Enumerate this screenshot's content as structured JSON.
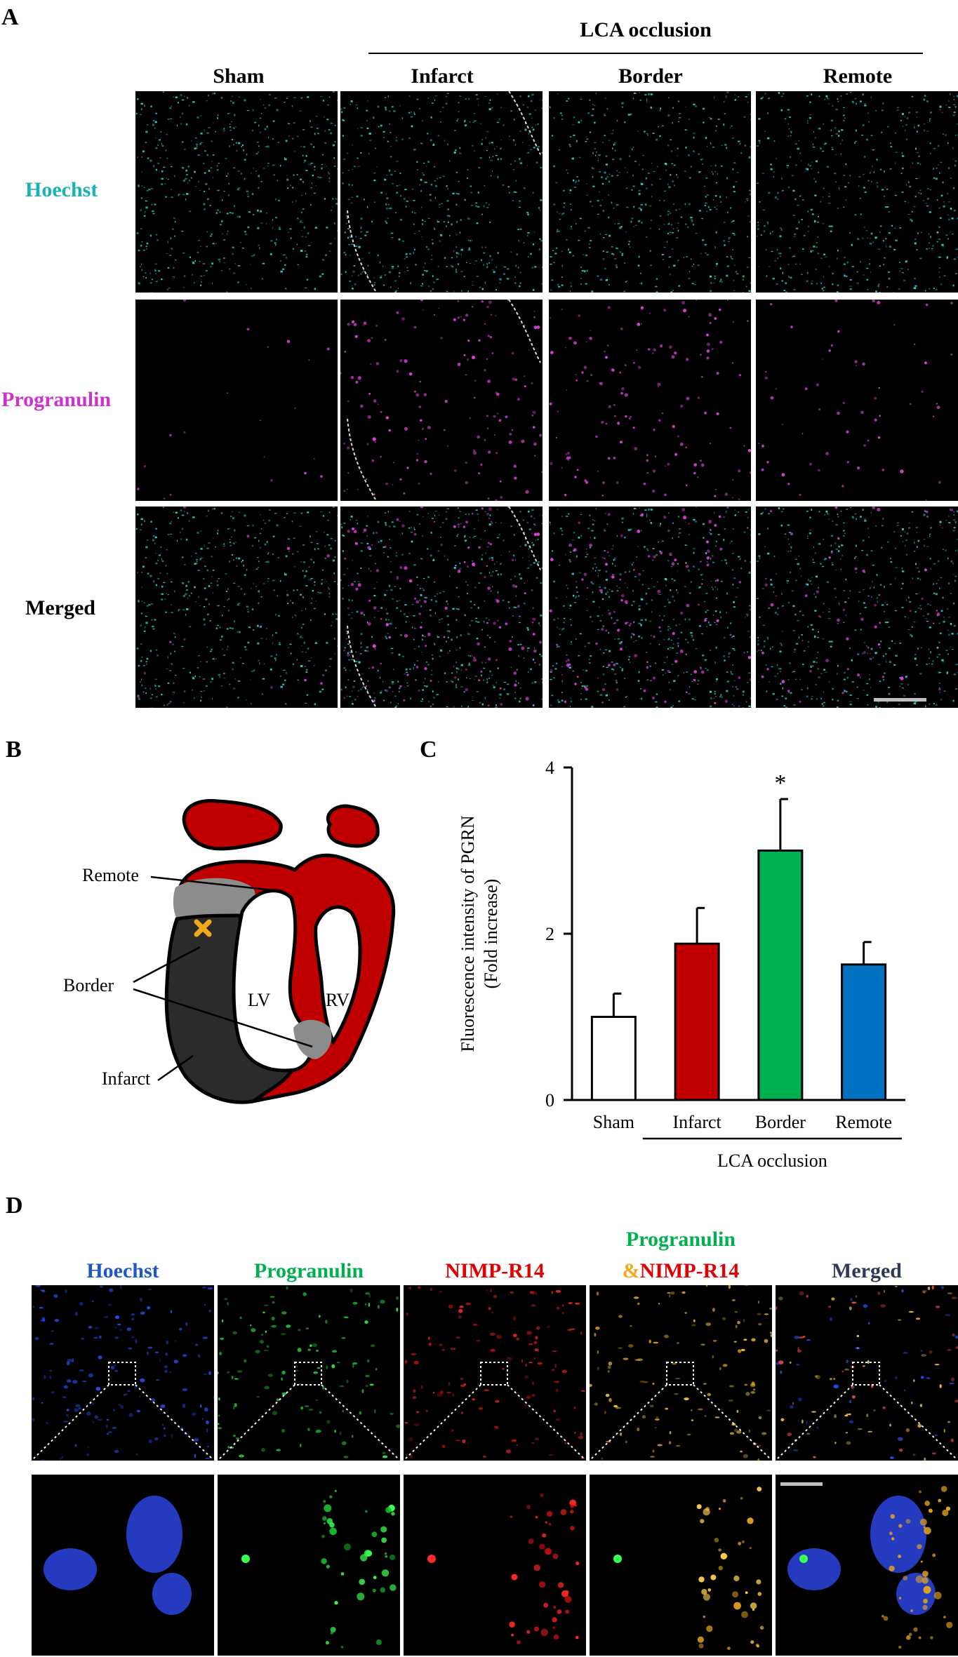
{
  "panel_a": {
    "label": "A",
    "group_label": "LCA occlusion",
    "columns": [
      "Sham",
      "Infarct",
      "Border",
      "Remote"
    ],
    "rows": [
      {
        "label": "Hoechst",
        "color": "#1ab3b3"
      },
      {
        "label": "Progranulin",
        "color": "#cc33cc"
      },
      {
        "label": "Merged",
        "color": "#000000"
      }
    ],
    "stain_colors": {
      "hoechst": "#3ad6d6",
      "progranulin": "#e040e0"
    }
  },
  "panel_b": {
    "label": "B",
    "labels": {
      "remote": "Remote",
      "border": "Border",
      "infarct": "Infarct",
      "lv": "LV",
      "rv": "RV"
    },
    "colors": {
      "remote": "#c00000",
      "border": "#8c8c8c",
      "infarct": "#2b2b2b",
      "marker": "#f2a81d"
    }
  },
  "panel_c": {
    "label": "C",
    "group_label": "LCA occlusion",
    "significance": "*"
  },
  "chart_data": {
    "type": "bar",
    "categories": [
      "Sham",
      "Infarct",
      "Border",
      "Remote"
    ],
    "values": [
      1.0,
      1.88,
      3.0,
      1.63
    ],
    "errors": [
      0.28,
      0.43,
      0.62,
      0.27
    ],
    "colors": [
      "#ffffff",
      "#c00000",
      "#00b050",
      "#0070c0"
    ],
    "ylabel": "Fluorescence intensity of PGRN",
    "ylabel2": "(Fold increase)",
    "ylim": [
      0,
      4
    ],
    "yticks": [
      0,
      2,
      4
    ],
    "annotation": {
      "category": "Border",
      "text": "*"
    }
  },
  "panel_d": {
    "label": "D",
    "columns": [
      {
        "label": "Hoechst",
        "color": "#1f57c4"
      },
      {
        "label": "Progranulin",
        "color": "#00b050"
      },
      {
        "label": "NIMP-R14",
        "color": "#e00000"
      },
      {
        "label_top": "Progranulin",
        "label_amp": "&",
        "label_bottom": "NIMP-R14",
        "color_top": "#00b050",
        "color_amp": "#f2a81d",
        "color_bottom": "#e00000"
      },
      {
        "label": "Merged",
        "color": "#2f3a5a"
      }
    ]
  }
}
